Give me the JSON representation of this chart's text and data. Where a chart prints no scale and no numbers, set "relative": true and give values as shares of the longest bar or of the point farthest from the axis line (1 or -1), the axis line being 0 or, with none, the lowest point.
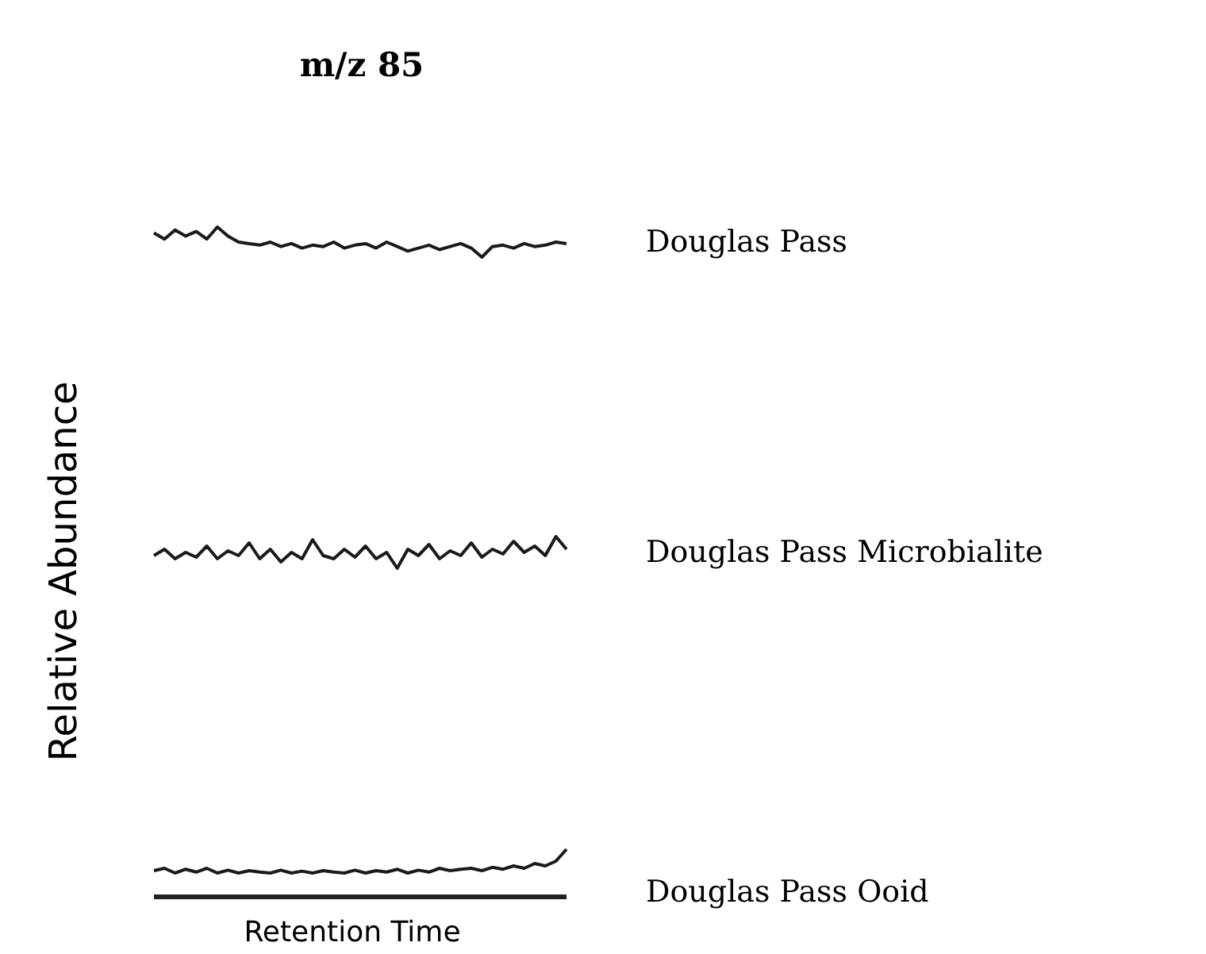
{
  "chart_data": [
    {
      "type": "line",
      "relative": true,
      "title": "m/z 85",
      "categories": [
        null,
        null,
        null,
        null,
        null,
        null,
        null,
        null,
        null,
        null,
        null,
        null,
        null,
        null,
        null,
        null,
        null,
        null,
        null,
        null,
        null,
        null,
        null,
        null,
        null,
        null,
        null,
        null,
        null,
        null,
        null,
        null,
        null,
        null,
        null,
        null,
        null,
        null,
        null,
        null
      ],
      "series": [
        {
          "name": "Douglas Pass",
          "color": "#1a1a1a",
          "values": [
            0.8,
            0.6,
            0.9,
            0.7,
            0.85,
            0.6,
            1,
            0.7,
            0.5,
            0.45,
            0.4,
            0.5,
            0.35,
            0.45,
            0.3,
            0.4,
            0.35,
            0.5,
            0.3,
            0.4,
            0.45,
            0.3,
            0.5,
            0.35,
            0.2,
            0.3,
            0.4,
            0.25,
            0.35,
            0.45,
            0.3,
            0,
            0.35,
            0.4,
            0.3,
            0.45,
            0.35,
            0.4,
            0.5,
            0.45
          ]
        }
      ]
    },
    {
      "type": "line",
      "relative": true,
      "ylabel": "Relative Abundance",
      "categories": [
        null,
        null,
        null,
        null,
        null,
        null,
        null,
        null,
        null,
        null,
        null,
        null,
        null,
        null,
        null,
        null,
        null,
        null,
        null,
        null,
        null,
        null,
        null,
        null,
        null,
        null,
        null,
        null,
        null,
        null,
        null,
        null,
        null,
        null,
        null,
        null,
        null,
        null,
        null,
        null
      ],
      "series": [
        {
          "name": "Douglas Pass Microbialite",
          "color": "#1a1a1a",
          "values": [
            0.4,
            0.6,
            0.3,
            0.5,
            0.35,
            0.7,
            0.3,
            0.55,
            0.4,
            0.8,
            0.3,
            0.6,
            0.2,
            0.5,
            0.3,
            0.9,
            0.4,
            0.3,
            0.6,
            0.35,
            0.7,
            0.3,
            0.5,
            0,
            0.6,
            0.4,
            0.75,
            0.3,
            0.55,
            0.4,
            0.8,
            0.35,
            0.6,
            0.45,
            0.85,
            0.5,
            0.7,
            0.4,
            1,
            0.6
          ]
        }
      ]
    },
    {
      "type": "line",
      "relative": true,
      "xlabel": "Retention Time",
      "categories": [
        null,
        null,
        null,
        null,
        null,
        null,
        null,
        null,
        null,
        null,
        null,
        null,
        null,
        null,
        null,
        null,
        null,
        null,
        null,
        null,
        null,
        null,
        null,
        null,
        null,
        null,
        null,
        null,
        null,
        null,
        null,
        null,
        null,
        null,
        null,
        null,
        null,
        null,
        null,
        null
      ],
      "series": [
        {
          "name": "Douglas Pass Ooid",
          "color": "#1a1a1a",
          "values": [
            0.55,
            0.6,
            0.5,
            0.58,
            0.52,
            0.6,
            0.5,
            0.56,
            0.5,
            0.55,
            0.52,
            0.5,
            0.56,
            0.5,
            0.54,
            0.5,
            0.55,
            0.52,
            0.5,
            0.56,
            0.5,
            0.55,
            0.52,
            0.58,
            0.5,
            0.56,
            0.52,
            0.6,
            0.55,
            0.58,
            0.6,
            0.55,
            0.62,
            0.58,
            0.65,
            0.6,
            0.7,
            0.65,
            0.75,
            1
          ]
        }
      ]
    }
  ]
}
